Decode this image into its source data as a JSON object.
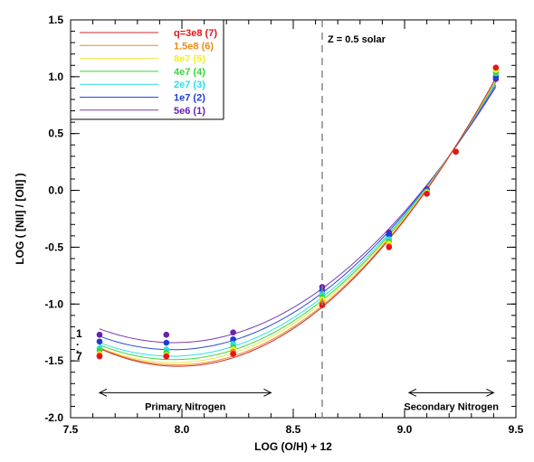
{
  "chart_data": {
    "type": "line",
    "title": "",
    "xlabel": "LOG (O/H) + 12",
    "ylabel": "LOG ( [NII] / [OII] )",
    "xlim": [
      7.5,
      9.5
    ],
    "ylim": [
      -2.0,
      1.5
    ],
    "x_ticks": [
      "7.5",
      "8.0",
      "8.5",
      "9.0",
      "9.5"
    ],
    "y_ticks": [
      "1.5",
      "1.0",
      "0.5",
      "0.0",
      "-0.5",
      "-1.0",
      "-1.5",
      "-2.0"
    ],
    "x_tick_values": [
      7.5,
      8.0,
      8.5,
      9.0,
      9.5
    ],
    "y_tick_values": [
      1.5,
      1.0,
      0.5,
      0.0,
      -0.5,
      -1.0,
      -1.5,
      -2.0
    ],
    "grid": false,
    "legend_position": "top-left",
    "x": [
      7.63,
      7.93,
      8.23,
      8.63,
      8.93,
      9.1,
      9.23,
      9.41
    ],
    "series": [
      {
        "name": "q=3e8 (7)",
        "label_color": "#e8141a",
        "line_color": "#cc2a2a",
        "values": [
          -1.46,
          -1.46,
          -1.44,
          -1.01,
          -0.5,
          -0.03,
          0.34,
          1.08
        ]
      },
      {
        "name": "1.5e8 (6)",
        "label_color": "#f08a12",
        "line_color": "#e88a2a",
        "values": [
          -1.45,
          -1.46,
          -1.42,
          -0.99,
          -0.49,
          -0.03,
          0.34,
          1.08
        ]
      },
      {
        "name": "8e7 (5)",
        "label_color": "#f2f21a",
        "line_color": "#f0e840",
        "values": [
          -1.44,
          -1.45,
          -1.4,
          -0.96,
          -0.47,
          -0.02,
          0.34,
          1.06
        ]
      },
      {
        "name": "4e7 (4)",
        "label_color": "#3cd63c",
        "line_color": "#3cd63c",
        "values": [
          -1.41,
          -1.43,
          -1.38,
          -0.94,
          -0.45,
          -0.01,
          0.34,
          1.04
        ]
      },
      {
        "name": "2e7 (3)",
        "label_color": "#2ae0e6",
        "line_color": "#2ae0e6",
        "values": [
          -1.39,
          -1.4,
          -1.35,
          -0.91,
          -0.43,
          -0.01,
          0.34,
          1.03
        ]
      },
      {
        "name": "1e7 (2)",
        "label_color": "#1f3cd6",
        "line_color": "#2a4ad6",
        "values": [
          -1.33,
          -1.34,
          -1.31,
          -0.88,
          -0.39,
          0.0,
          0.34,
          1.0
        ]
      },
      {
        "name": "5e6 (1)",
        "label_color": "#6a1fb0",
        "line_color": "#7a3ab8",
        "values": [
          -1.27,
          -1.27,
          -1.25,
          -0.85,
          -0.37,
          0.01,
          0.34,
          0.98
        ]
      }
    ],
    "vline": {
      "x": 8.63,
      "label": "Z = 0.5 solar"
    },
    "left_labels": [
      {
        "text": "1",
        "color": "#6a1fb0"
      },
      {
        "text": ".",
        "color": "#2ae0e6"
      },
      {
        "text": ".",
        "color": "#3cd63c"
      },
      {
        "text": "7",
        "color": "#e8141a"
      }
    ],
    "annotations": [
      {
        "text": "Primary Nitrogen",
        "arrow_from": 7.63,
        "arrow_to": 8.4,
        "y": -1.78
      },
      {
        "text": "Secondary Nitrogen",
        "arrow_from": 9.02,
        "arrow_to": 9.4,
        "y": -1.78
      }
    ]
  }
}
